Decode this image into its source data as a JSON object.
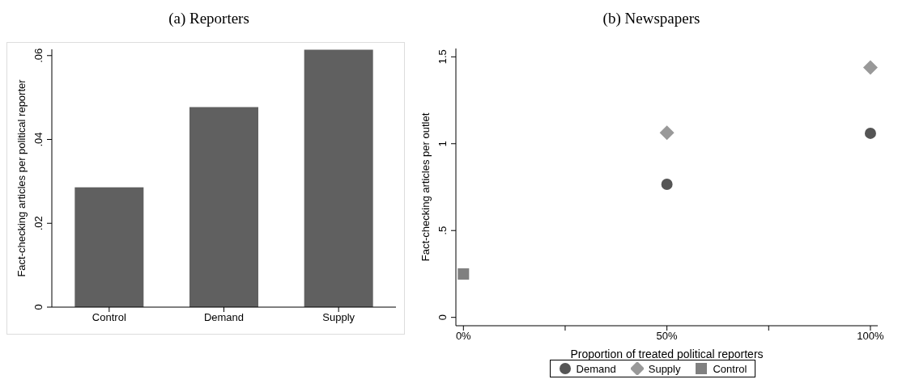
{
  "chart_data": [
    {
      "type": "bar",
      "title": "(a) Reporters",
      "ylabel": "Fact-checking articles per political reporter",
      "categories": [
        "Control",
        "Demand",
        "Supply"
      ],
      "values": [
        0.0286,
        0.0477,
        0.0614
      ],
      "color": "#606060",
      "ylim": [
        0,
        0.0615
      ],
      "yticks": [
        0,
        {
          "value": 0.02,
          "label": ".02"
        },
        {
          "value": 0.04,
          "label": ".04"
        },
        {
          "value": 0.06,
          "label": ".06"
        }
      ],
      "grid": false
    },
    {
      "type": "scatter",
      "title": "(b) Newspapers",
      "xlabel": "Proportion of treated political reporters",
      "ylabel": "Fact-checking articles per outlet",
      "legend": "bottom",
      "grid": false,
      "xlim": [
        -1.85,
        101.8
      ],
      "xticks": [
        {
          "value": 0,
          "label": "0%"
        },
        {
          "value": 25,
          "label": null
        },
        {
          "value": 50,
          "label": "50%"
        },
        {
          "value": 75,
          "label": null
        },
        {
          "value": 100,
          "label": "100%"
        }
      ],
      "ylim": [
        -0.048,
        1.548
      ],
      "yticks": [
        0,
        {
          "value": 0.5,
          "label": ".5"
        },
        1,
        1.5
      ],
      "series": [
        {
          "name": "Demand",
          "color": "#555555",
          "marker": "circle",
          "x": [
            50,
            100
          ],
          "values": [
            0.766,
            1.06
          ]
        },
        {
          "name": "Supply",
          "color": "#999999",
          "marker": "diamond",
          "x": [
            50,
            100
          ],
          "values": [
            1.063,
            1.439
          ]
        },
        {
          "name": "Control",
          "color": "#808080",
          "marker": "square",
          "x": [
            0
          ],
          "values": [
            0.25
          ]
        }
      ]
    }
  ]
}
